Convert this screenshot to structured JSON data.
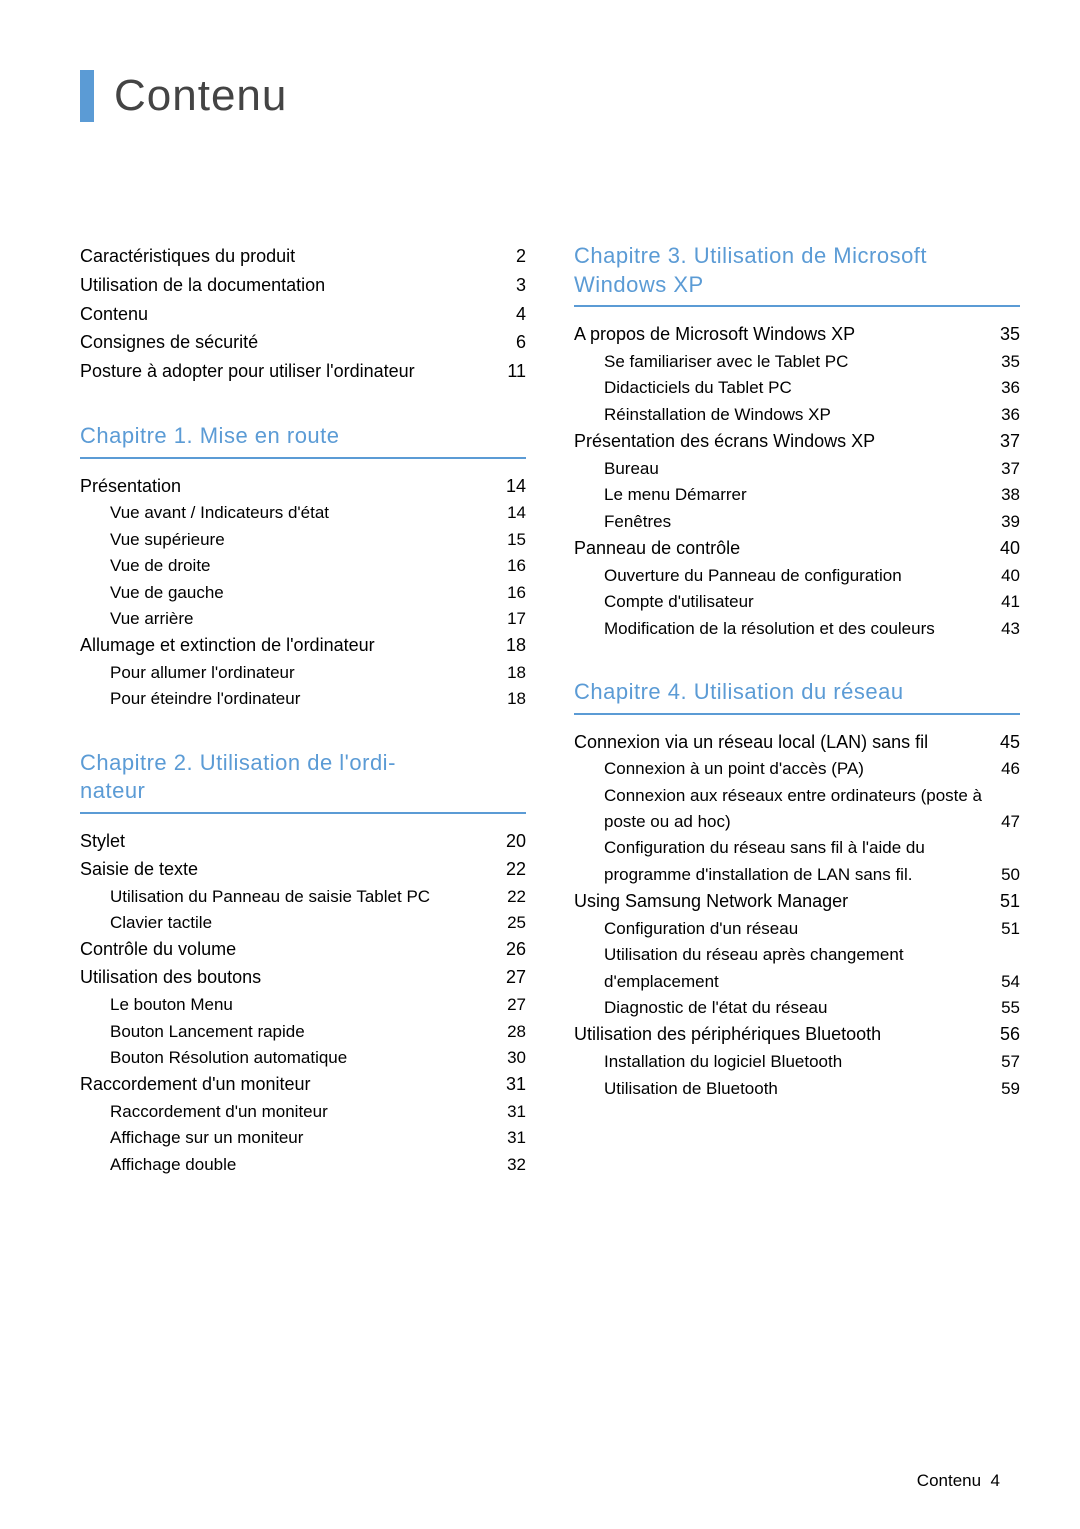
{
  "page_title": "Contenu",
  "title_bar_color": "#5b9bd5",
  "chapter_title_color": "#5b9bd5",
  "chapter_rule_color": "#5b9bd5",
  "text_color": "#000000",
  "background_color": "#ffffff",
  "font_family": "Arial",
  "items": {
    "i0": {
      "label": "Caractéristiques du produit",
      "pg": "2"
    },
    "i1": {
      "label": "Utilisation de la documentation",
      "pg": "3"
    },
    "i2": {
      "label": "Contenu",
      "pg": "4"
    },
    "i3": {
      "label": "Consignes de sécurité",
      "pg": "6"
    },
    "i4": {
      "label": "Posture à adopter pour utiliser l'ordinateur",
      "pg": "11"
    },
    "c1": "Chapitre 1. Mise en route",
    "i5": {
      "label": "Présentation",
      "pg": "14"
    },
    "i6": {
      "label": "Vue avant / Indicateurs d'état",
      "pg": "14"
    },
    "i7": {
      "label": "Vue supérieure",
      "pg": "15"
    },
    "i8": {
      "label": "Vue de droite",
      "pg": "16"
    },
    "i9": {
      "label": "Vue de gauche",
      "pg": "16"
    },
    "i10": {
      "label": "Vue arrière",
      "pg": "17"
    },
    "i11": {
      "label": "Allumage et extinction de l'ordinateur",
      "pg": "18"
    },
    "i12": {
      "label": "Pour allumer l'ordinateur",
      "pg": "18"
    },
    "i13": {
      "label": "Pour éteindre l'ordinateur",
      "pg": "18"
    },
    "c2": "Chapitre 2. Utilisation de l'ordi-nateur",
    "c2a": "Chapitre 2. Utilisation de l'ordi-",
    "c2b": "nateur",
    "i14": {
      "label": "Stylet",
      "pg": "20"
    },
    "i15": {
      "label": "Saisie de texte",
      "pg": "22"
    },
    "i16": {
      "label": "Utilisation du Panneau de saisie Tablet PC",
      "pg": "22"
    },
    "i17": {
      "label": "Clavier tactile",
      "pg": "25"
    },
    "i18": {
      "label": "Contrôle du volume",
      "pg": "26"
    },
    "i19": {
      "label": "Utilisation des boutons",
      "pg": "27"
    },
    "i20": {
      "label": "Le bouton Menu",
      "pg": "27"
    },
    "i21": {
      "label": "Bouton Lancement rapide",
      "pg": "28"
    },
    "i22": {
      "label": "Bouton Résolution automatique",
      "pg": "30"
    },
    "i23": {
      "label": "Raccordement d'un moniteur",
      "pg": "31"
    },
    "i24": {
      "label": "Raccordement d'un moniteur",
      "pg": "31"
    },
    "i25": {
      "label": "Affichage sur un moniteur",
      "pg": "31"
    },
    "i26": {
      "label": "Affichage double",
      "pg": "32"
    },
    "c3": "Chapitre 3. Utilisation de Microsoft Windows XP",
    "i27": {
      "label": "A propos de Microsoft Windows XP",
      "pg": "35"
    },
    "i28": {
      "label": "Se familiariser avec le Tablet PC",
      "pg": "35"
    },
    "i29": {
      "label": "Didacticiels du Tablet PC",
      "pg": "36"
    },
    "i30": {
      "label": "Réinstallation de Windows XP",
      "pg": "36"
    },
    "i31": {
      "label": "Présentation des écrans Windows XP",
      "pg": "37"
    },
    "i32": {
      "label": "Bureau",
      "pg": "37"
    },
    "i33": {
      "label": "Le menu Démarrer",
      "pg": "38"
    },
    "i34": {
      "label": "Fenêtres",
      "pg": "39"
    },
    "i35": {
      "label": "Panneau de contrôle",
      "pg": "40"
    },
    "i36": {
      "label": "Ouverture du Panneau de configuration",
      "pg": "40"
    },
    "i37": {
      "label": "Compte d'utilisateur",
      "pg": "41"
    },
    "i38": {
      "label": "Modification de la résolution et des couleurs",
      "pg": "43"
    },
    "c4": "Chapitre 4. Utilisation du réseau",
    "i39": {
      "label": "Connexion via un réseau local (LAN) sans fil",
      "pg": "45"
    },
    "i40": {
      "label": "Connexion à un point d'accès (PA)",
      "pg": "46"
    },
    "i41": {
      "label": "Connexion aux réseaux entre ordinateurs (poste à poste ou ad hoc)",
      "pg": "47"
    },
    "i42": {
      "label": "Configuration du réseau sans fil à l'aide du programme d'installation de LAN sans fil.",
      "pg": "50"
    },
    "i43": {
      "label": "Using Samsung Network Manager",
      "pg": "51"
    },
    "i44": {
      "label": "Configuration d'un réseau",
      "pg": "51"
    },
    "i45": {
      "label": "Utilisation du réseau après changement d'emplacement",
      "pg": "54"
    },
    "i46": {
      "label": "Diagnostic de l'état du réseau",
      "pg": "55"
    },
    "i47": {
      "label": "Utilisation des périphériques Bluetooth",
      "pg": "56"
    },
    "i48": {
      "label": "Installation du logiciel Bluetooth",
      "pg": "57"
    },
    "i49": {
      "label": "Utilisation de Bluetooth",
      "pg": "59"
    }
  },
  "footer": {
    "label": "Contenu",
    "pg": "4"
  }
}
